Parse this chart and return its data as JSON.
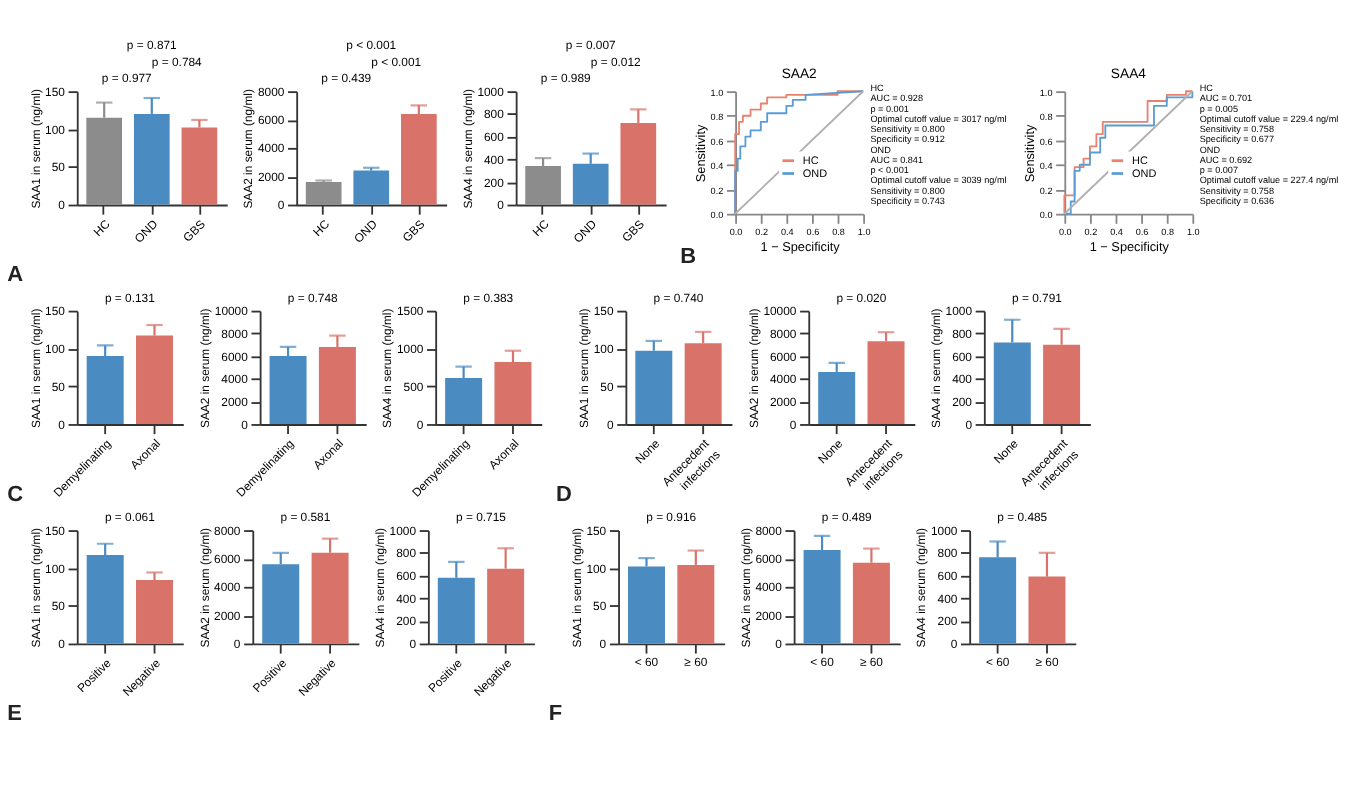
{
  "chart_data": [
    {
      "type": "bar",
      "categories": [
        "HC",
        "OND",
        "GBS"
      ],
      "values": [
        115,
        120,
        102
      ],
      "colors": [
        "#8c8c8c",
        "#4a8bc2",
        "#d9736a"
      ],
      "errors": [
        [
          115,
          135
        ],
        [
          120,
          141
        ],
        [
          102,
          112
        ]
      ],
      "ylim": [
        0,
        150
      ],
      "yticks": [
        0,
        50,
        100,
        150
      ],
      "ylabel": "SAA1 in serum (ng/ml)",
      "annotations": [
        "A",
        "p = 0.977",
        "p = 0.784",
        "p = 0.871"
      ]
    },
    {
      "type": "bar",
      "categories": [
        "HC",
        "OND",
        "GBS"
      ],
      "values": [
        1600,
        2400,
        6400
      ],
      "colors": [
        "#8c8c8c",
        "#4a8bc2",
        "#d9736a"
      ],
      "errors": [
        [
          1600,
          1700
        ],
        [
          2400,
          2600
        ],
        [
          6400,
          7000
        ]
      ],
      "ylim": [
        0,
        8000
      ],
      "yticks": [
        0,
        2000,
        4000,
        6000,
        8000
      ],
      "ylabel": "SAA2 in serum (ng/ml)",
      "annotations": [
        "p = 0.439",
        "p < 0.001",
        "p < 0.001"
      ]
    },
    {
      "type": "bar",
      "categories": [
        "HC",
        "OND",
        "GBS"
      ],
      "values": [
        340,
        360,
        720
      ],
      "colors": [
        "#8c8c8c",
        "#4a8bc2",
        "#d9736a"
      ],
      "errors": [
        [
          340,
          410
        ],
        [
          360,
          450
        ],
        [
          720,
          840
        ]
      ],
      "ylim": [
        0,
        1000
      ],
      "yticks": [
        0,
        200,
        400,
        600,
        800,
        1000
      ],
      "ylabel": "SAA4 in serum (ng/ml)",
      "annotations": [
        "p = 0.989",
        "p = 0.012",
        "p = 0.007"
      ]
    },
    {
      "type": "line",
      "title": "SAA2",
      "xlabel": "1 − Specificity",
      "ylabel": "Sensitivity",
      "xlim": [
        0,
        1
      ],
      "ylim": [
        0,
        1
      ],
      "xticks": [
        {
          "value": 0,
          "label": "0.0"
        },
        {
          "value": 0.2,
          "label": "0.2"
        },
        {
          "value": 0.4,
          "label": "0.4"
        },
        {
          "value": 0.6,
          "label": "0.6"
        },
        {
          "value": 0.8,
          "label": "0.8"
        },
        {
          "value": 1,
          "label": "1.0"
        }
      ],
      "yticks": [
        {
          "value": 0,
          "label": "0.0"
        },
        {
          "value": 0.2,
          "label": "0.2"
        },
        {
          "value": 0.4,
          "label": "0.4"
        },
        {
          "value": 0.6,
          "label": "0.6"
        },
        {
          "value": 0.8,
          "label": "0.8"
        },
        {
          "value": 1,
          "label": "1.0"
        }
      ],
      "legend": "bottom right",
      "series": [
        {
          "name": "HC",
          "color": "#e8826f",
          "x": [
            0,
            0,
            0.03,
            0.03,
            0.06,
            0.06,
            0.12,
            0.12,
            0.2,
            0.2,
            0.25,
            0.25,
            0.4,
            0.4,
            0.8,
            0.8,
            1
          ],
          "values": [
            0,
            0.65,
            0.65,
            0.75,
            0.75,
            0.8,
            0.8,
            0.85,
            0.85,
            0.9,
            0.9,
            0.95,
            0.95,
            0.97,
            0.97,
            1,
            1
          ]
        },
        {
          "name": "OND",
          "color": "#5b9bd5",
          "x": [
            0,
            0,
            0.02,
            0.02,
            0.04,
            0.04,
            0.08,
            0.08,
            0.12,
            0.12,
            0.2,
            0.2,
            0.25,
            0.25,
            0.4,
            0.4,
            0.45,
            0.45,
            0.55,
            0.55,
            1
          ],
          "values": [
            0,
            0.35,
            0.35,
            0.45,
            0.45,
            0.55,
            0.55,
            0.63,
            0.63,
            0.68,
            0.68,
            0.75,
            0.75,
            0.82,
            0.82,
            0.88,
            0.88,
            0.93,
            0.93,
            0.97,
            1
          ]
        },
        {
          "color": "#b0b0b0",
          "x": [
            0,
            1
          ],
          "values": [
            0,
            1
          ]
        }
      ],
      "annotations": [
        "B",
        "HC",
        "AUC = 0.928",
        "p = 0.001",
        "Optimal cutoff value = 3017 ng/ml",
        "Sensitivity = 0.800",
        "Specificity = 0.912",
        "OND",
        "AUC = 0.841",
        "p < 0.001",
        "Optimal cutoff value = 3039 ng/ml",
        "Sensitivity = 0.800",
        "Specificity = 0.743"
      ]
    },
    {
      "type": "line",
      "title": "SAA4",
      "xlabel": "1 − Specificity",
      "ylabel": "Sensitivity",
      "xlim": [
        0,
        1
      ],
      "ylim": [
        0,
        1
      ],
      "xticks": [
        {
          "value": 0,
          "label": "0.0"
        },
        {
          "value": 0.2,
          "label": "0.2"
        },
        {
          "value": 0.4,
          "label": "0.4"
        },
        {
          "value": 0.6,
          "label": "0.6"
        },
        {
          "value": 0.8,
          "label": "0.8"
        },
        {
          "value": 1,
          "label": "1.0"
        }
      ],
      "yticks": [
        {
          "value": 0,
          "label": "0.0"
        },
        {
          "value": 0.2,
          "label": "0.2"
        },
        {
          "value": 0.4,
          "label": "0.4"
        },
        {
          "value": 0.6,
          "label": "0.6"
        },
        {
          "value": 0.8,
          "label": "0.8"
        },
        {
          "value": 1,
          "label": "1.0"
        }
      ],
      "legend": "bottom right",
      "series": [
        {
          "name": "HC",
          "color": "#e8826f",
          "x": [
            0,
            0,
            0.08,
            0.08,
            0.15,
            0.15,
            0.2,
            0.2,
            0.25,
            0.25,
            0.3,
            0.3,
            0.65,
            0.65,
            0.8,
            0.8,
            0.95,
            0.95,
            1
          ],
          "values": [
            0,
            0.15,
            0.15,
            0.38,
            0.38,
            0.45,
            0.45,
            0.55,
            0.55,
            0.65,
            0.65,
            0.75,
            0.75,
            0.92,
            0.92,
            0.97,
            0.97,
            1,
            1
          ]
        },
        {
          "name": "OND",
          "color": "#5b9bd5",
          "x": [
            0,
            0.05,
            0.05,
            0.08,
            0.08,
            0.12,
            0.12,
            0.2,
            0.2,
            0.28,
            0.28,
            0.32,
            0.32,
            0.7,
            0.7,
            0.8,
            0.8,
            1,
            1
          ],
          "values": [
            0,
            0,
            0.1,
            0.1,
            0.35,
            0.35,
            0.4,
            0.4,
            0.5,
            0.5,
            0.62,
            0.62,
            0.72,
            0.72,
            0.88,
            0.88,
            0.95,
            0.95,
            1
          ]
        },
        {
          "color": "#b0b0b0",
          "x": [
            0,
            1
          ],
          "values": [
            0,
            1
          ]
        }
      ],
      "annotations": [
        "HC",
        "AUC = 0.701",
        "p = 0.005",
        "Optimal cutoff value = 229.4 ng/ml",
        "Sensitivity = 0.758",
        "Specificity = 0.677",
        "OND",
        "AUC = 0.692",
        "p = 0.007",
        "Optimal cutoff value = 227.4 ng/ml",
        "Sensitivity = 0.758",
        "Specificity = 0.636"
      ]
    },
    {
      "type": "bar",
      "categories": [
        "Demyelinating",
        "Axonal"
      ],
      "values": [
        90,
        117
      ],
      "colors": [
        "#4a8bc2",
        "#d9736a"
      ],
      "errors": [
        [
          90,
          104
        ],
        [
          117,
          131
        ]
      ],
      "ylim": [
        0,
        150
      ],
      "yticks": [
        0,
        50,
        100,
        150
      ],
      "ylabel": "SAA1 in serum (ng/ml)",
      "annotations": [
        "C",
        "p = 0.131"
      ]
    },
    {
      "type": "bar",
      "categories": [
        "Demyelinating",
        "Axonal"
      ],
      "values": [
        6000,
        6800
      ],
      "colors": [
        "#4a8bc2",
        "#d9736a"
      ],
      "errors": [
        [
          6000,
          6800
        ],
        [
          6800,
          7800
        ]
      ],
      "ylim": [
        0,
        10000
      ],
      "yticks": [
        0,
        2000,
        4000,
        6000,
        8000,
        10000
      ],
      "ylabel": "SAA2 in serum (ng/ml)",
      "annotations": [
        "p = 0.748"
      ]
    },
    {
      "type": "bar",
      "categories": [
        "Demyelinating",
        "Axonal"
      ],
      "values": [
        610,
        820
      ],
      "colors": [
        "#4a8bc2",
        "#d9736a"
      ],
      "errors": [
        [
          610,
          760
        ],
        [
          820,
          970
        ]
      ],
      "ylim": [
        0,
        1500
      ],
      "yticks": [
        0,
        500,
        1000,
        1500
      ],
      "ylabel": "SAA4 in serum (ng/ml)",
      "annotations": [
        "p = 0.383"
      ]
    },
    {
      "type": "bar",
      "categories": [
        "None",
        "Antecedent infections"
      ],
      "values": [
        97,
        107
      ],
      "colors": [
        "#4a8bc2",
        "#d9736a"
      ],
      "errors": [
        [
          97,
          110
        ],
        [
          107,
          122
        ]
      ],
      "ylim": [
        0,
        150
      ],
      "yticks": [
        0,
        50,
        100,
        150
      ],
      "ylabel": "SAA1 in serum (ng/ml)",
      "annotations": [
        "D",
        "p = 0.740"
      ]
    },
    {
      "type": "bar",
      "categories": [
        "None",
        "Antecedent infections"
      ],
      "values": [
        4600,
        7300
      ],
      "colors": [
        "#4a8bc2",
        "#d9736a"
      ],
      "errors": [
        [
          4600,
          5400
        ],
        [
          7300,
          8100
        ]
      ],
      "ylim": [
        0,
        10000
      ],
      "yticks": [
        0,
        2000,
        4000,
        6000,
        8000,
        10000
      ],
      "ylabel": "SAA2 in serum (ng/ml)",
      "annotations": [
        "p = 0.020"
      ]
    },
    {
      "type": "bar",
      "categories": [
        "None",
        "Antecedent infections"
      ],
      "values": [
        720,
        700
      ],
      "colors": [
        "#4a8bc2",
        "#d9736a"
      ],
      "errors": [
        [
          720,
          920
        ],
        [
          700,
          840
        ]
      ],
      "ylim": [
        0,
        1000
      ],
      "yticks": [
        0,
        200,
        400,
        600,
        800,
        1000
      ],
      "ylabel": "SAA4 in serum (ng/ml)",
      "annotations": [
        "p = 0.791"
      ]
    },
    {
      "type": "bar",
      "categories": [
        "Positive",
        "Negative"
      ],
      "values": [
        117,
        84
      ],
      "colors": [
        "#4a8bc2",
        "#d9736a"
      ],
      "errors": [
        [
          117,
          132
        ],
        [
          84,
          94
        ]
      ],
      "ylim": [
        0,
        150
      ],
      "yticks": [
        0,
        50,
        100,
        150
      ],
      "ylabel": "SAA1 in serum (ng/ml)",
      "annotations": [
        "E",
        "p = 0.061"
      ]
    },
    {
      "type": "bar",
      "categories": [
        "Positive",
        "Negative"
      ],
      "values": [
        5600,
        6400
      ],
      "colors": [
        "#4a8bc2",
        "#d9736a"
      ],
      "errors": [
        [
          5600,
          6400
        ],
        [
          6400,
          7400
        ]
      ],
      "ylim": [
        0,
        8000
      ],
      "yticks": [
        0,
        2000,
        4000,
        6000,
        8000
      ],
      "ylabel": "SAA2 in serum (ng/ml)",
      "annotations": [
        "p = 0.581"
      ]
    },
    {
      "type": "bar",
      "categories": [
        "Positive",
        "Negative"
      ],
      "values": [
        580,
        660
      ],
      "colors": [
        "#4a8bc2",
        "#d9736a"
      ],
      "errors": [
        [
          580,
          720
        ],
        [
          660,
          840
        ]
      ],
      "ylim": [
        0,
        1000
      ],
      "yticks": [
        0,
        200,
        400,
        600,
        800,
        1000
      ],
      "ylabel": "SAA4 in serum (ng/ml)",
      "annotations": [
        "p = 0.715"
      ]
    },
    {
      "type": "bar",
      "categories": [
        "< 60",
        "≥ 60"
      ],
      "values": [
        102,
        104
      ],
      "colors": [
        "#4a8bc2",
        "#d9736a"
      ],
      "errors": [
        [
          102,
          113
        ],
        [
          104,
          123
        ]
      ],
      "ylim": [
        0,
        150
      ],
      "yticks": [
        0,
        50,
        100,
        150
      ],
      "ylabel": "SAA1 in serum (ng/ml)",
      "annotations": [
        "F",
        "p = 0.916"
      ]
    },
    {
      "type": "bar",
      "categories": [
        "< 60",
        "≥ 60"
      ],
      "values": [
        6600,
        5700
      ],
      "colors": [
        "#4a8bc2",
        "#d9736a"
      ],
      "errors": [
        [
          6600,
          7600
        ],
        [
          5700,
          6700
        ]
      ],
      "ylim": [
        0,
        8000
      ],
      "yticks": [
        0,
        2000,
        4000,
        6000,
        8000
      ],
      "ylabel": "SAA2 in serum (ng/ml)",
      "annotations": [
        "p = 0.489"
      ]
    },
    {
      "type": "bar",
      "categories": [
        "< 60",
        "≥ 60"
      ],
      "values": [
        760,
        590
      ],
      "colors": [
        "#4a8bc2",
        "#d9736a"
      ],
      "errors": [
        [
          760,
          900
        ],
        [
          590,
          800
        ]
      ],
      "ylim": [
        0,
        1000
      ],
      "yticks": [
        0,
        200,
        400,
        600,
        800,
        1000
      ],
      "ylabel": "SAA4 in serum (ng/ml)",
      "annotations": [
        "p = 0.485"
      ]
    }
  ]
}
